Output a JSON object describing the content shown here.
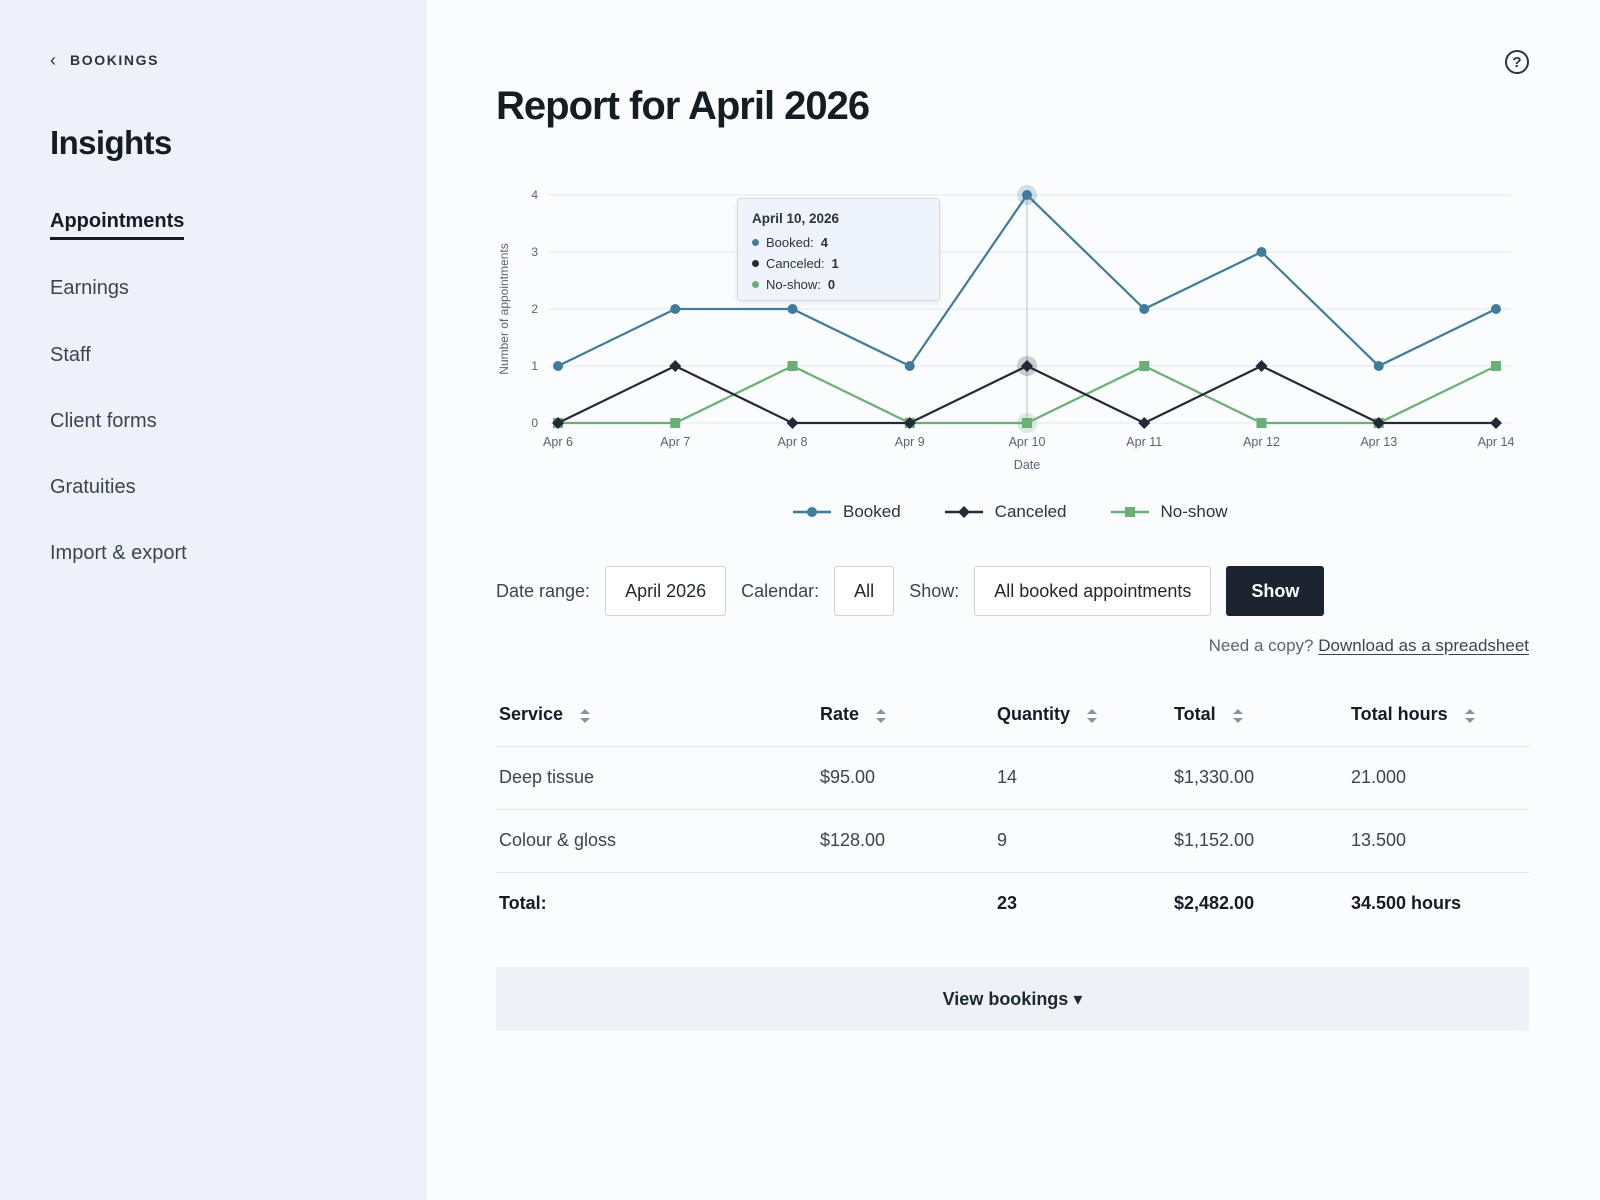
{
  "sidebar": {
    "back_label": "BOOKINGS",
    "title": "Insights",
    "items": [
      {
        "label": "Appointments",
        "active": true
      },
      {
        "label": "Earnings"
      },
      {
        "label": "Staff"
      },
      {
        "label": "Client forms"
      },
      {
        "label": "Gratuities"
      },
      {
        "label": "Import & export"
      }
    ]
  },
  "header": {
    "title": "Report for April 2026",
    "help_icon": "question-circle-icon"
  },
  "tooltip": {
    "title": "April 10, 2026",
    "rows": [
      {
        "label": "Booked:",
        "value": "4",
        "color": "#3e7c9c"
      },
      {
        "label": "Canceled:",
        "value": "1",
        "color": "#222a36"
      },
      {
        "label": "No-show:",
        "value": "0",
        "color": "#6aaf73"
      }
    ]
  },
  "chart_data": {
    "type": "line",
    "categories": [
      "Apr 6",
      "Apr 7",
      "Apr 8",
      "Apr 9",
      "Apr 10",
      "Apr 11",
      "Apr 12",
      "Apr 13",
      "Apr 14"
    ],
    "series": [
      {
        "name": "Booked",
        "values": [
          1,
          2,
          2,
          1,
          4,
          2,
          3,
          1,
          2
        ],
        "color": "#3e7c9c",
        "marker": "circle"
      },
      {
        "name": "Canceled",
        "values": [
          0,
          1,
          0,
          0,
          1,
          0,
          1,
          0,
          0
        ],
        "color": "#222a36",
        "marker": "diamond"
      },
      {
        "name": "No-show",
        "values": [
          0,
          0,
          1,
          0,
          0,
          1,
          0,
          0,
          1
        ],
        "color": "#6aaf73",
        "marker": "square"
      }
    ],
    "xlabel": "Date",
    "ylabel": "Number of appointments",
    "ylim": [
      0,
      4
    ],
    "yticks": [
      0,
      1,
      2,
      3,
      4
    ],
    "grid": true,
    "legend": "bottom-center",
    "highlight_category": "Apr 10"
  },
  "filters": {
    "date_range_label": "Date range:",
    "date_range_value": "April 2026",
    "calendar_label": "Calendar:",
    "calendar_value": "All",
    "show_label": "Show:",
    "show_value": "All booked appointments",
    "show_button": "Show"
  },
  "copy": {
    "prefix": "Need a copy?",
    "link": "Download as a spreadsheet"
  },
  "table": {
    "headers": [
      "Service",
      "Rate",
      "Quantity",
      "Total",
      "Total hours"
    ],
    "rows": [
      [
        "Deep tissue",
        "$95.00",
        "14",
        "$1,330.00",
        "21.000"
      ],
      [
        "Colour & gloss",
        "$128.00",
        "9",
        "$1,152.00",
        "13.500"
      ]
    ],
    "footer": [
      "Total:",
      "",
      "23",
      "$2,482.00",
      "34.500 hours"
    ]
  },
  "view_bookings": "View bookings ▾"
}
